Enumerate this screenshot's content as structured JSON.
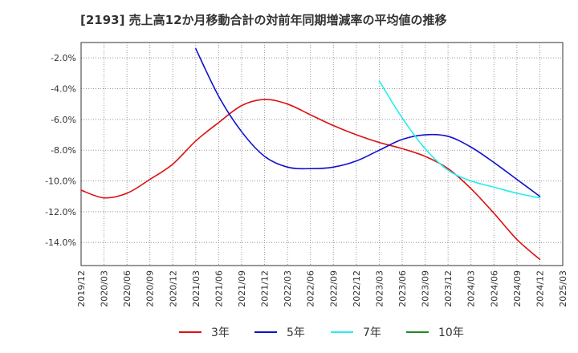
{
  "chart_data": {
    "type": "line",
    "title": "[2193]  売上高12か月移動合計の対前年同期増減率の平均値の推移",
    "xlabel": "",
    "ylabel": "",
    "x_ticks": [
      "2019/12",
      "2020/03",
      "2020/06",
      "2020/09",
      "2020/12",
      "2021/03",
      "2021/06",
      "2021/09",
      "2021/12",
      "2022/03",
      "2022/06",
      "2022/09",
      "2022/12",
      "2023/03",
      "2023/06",
      "2023/09",
      "2023/12",
      "2024/03",
      "2024/06",
      "2024/09",
      "2024/12",
      "2025/03"
    ],
    "y_ticks": [
      "-2.0%",
      "-4.0%",
      "-6.0%",
      "-8.0%",
      "-10.0%",
      "-12.0%",
      "-14.0%"
    ],
    "y_tick_values": [
      -2,
      -4,
      -6,
      -8,
      -10,
      -12,
      -14
    ],
    "ylim": [
      -15.5,
      -1.0
    ],
    "grid": true,
    "legend_position": "bottom",
    "series": [
      {
        "name": "3年",
        "color": "#dd1111",
        "points": [
          [
            "2019/12",
            -10.6
          ],
          [
            "2020/03",
            -11.1
          ],
          [
            "2020/06",
            -10.8
          ],
          [
            "2020/09",
            -9.9
          ],
          [
            "2020/12",
            -8.9
          ],
          [
            "2021/03",
            -7.4
          ],
          [
            "2021/06",
            -6.2
          ],
          [
            "2021/09",
            -5.1
          ],
          [
            "2021/12",
            -4.7
          ],
          [
            "2022/03",
            -5.0
          ],
          [
            "2022/06",
            -5.7
          ],
          [
            "2022/09",
            -6.4
          ],
          [
            "2022/12",
            -7.0
          ],
          [
            "2023/03",
            -7.5
          ],
          [
            "2023/06",
            -7.9
          ],
          [
            "2023/09",
            -8.4
          ],
          [
            "2023/12",
            -9.2
          ],
          [
            "2024/03",
            -10.5
          ],
          [
            "2024/06",
            -12.1
          ],
          [
            "2024/09",
            -13.8
          ],
          [
            "2024/12",
            -15.1
          ]
        ]
      },
      {
        "name": "5年",
        "color": "#1111cc",
        "points": [
          [
            "2021/03",
            -1.4
          ],
          [
            "2021/06",
            -4.5
          ],
          [
            "2021/09",
            -6.8
          ],
          [
            "2021/12",
            -8.4
          ],
          [
            "2022/03",
            -9.1
          ],
          [
            "2022/06",
            -9.2
          ],
          [
            "2022/09",
            -9.1
          ],
          [
            "2022/12",
            -8.7
          ],
          [
            "2023/03",
            -8.0
          ],
          [
            "2023/06",
            -7.3
          ],
          [
            "2023/09",
            -7.0
          ],
          [
            "2023/12",
            -7.1
          ],
          [
            "2024/03",
            -7.8
          ],
          [
            "2024/06",
            -8.8
          ],
          [
            "2024/09",
            -9.9
          ],
          [
            "2024/12",
            -11.0
          ]
        ]
      },
      {
        "name": "7年",
        "color": "#22eeee",
        "points": [
          [
            "2023/03",
            -3.5
          ],
          [
            "2023/06",
            -5.9
          ],
          [
            "2023/09",
            -7.9
          ],
          [
            "2023/12",
            -9.3
          ],
          [
            "2024/03",
            -10.0
          ],
          [
            "2024/06",
            -10.4
          ],
          [
            "2024/09",
            -10.8
          ],
          [
            "2024/12",
            -11.1
          ]
        ]
      },
      {
        "name": "10年",
        "color": "#228822",
        "points": []
      }
    ]
  }
}
